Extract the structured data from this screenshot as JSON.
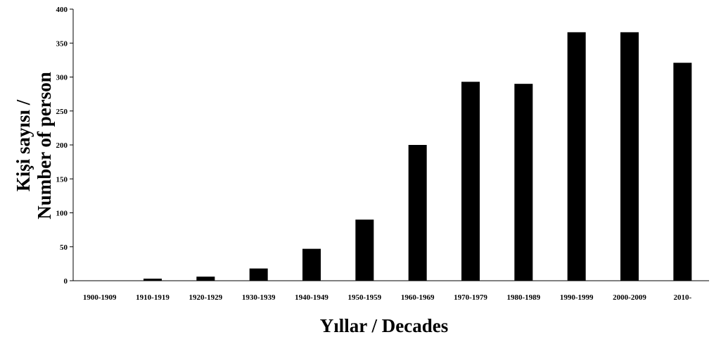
{
  "chart_data": {
    "type": "bar",
    "categories": [
      "1900-1909",
      "1910-1919",
      "1920-1929",
      "1930-1939",
      "1940-1949",
      "1950-1959",
      "1960-1969",
      "1970-1979",
      "1980-1989",
      "1990-1999",
      "2000-2009",
      "2010-"
    ],
    "values": [
      0,
      3,
      6,
      18,
      47,
      90,
      200,
      293,
      290,
      366,
      366,
      321
    ],
    "xlabel": "Yıllar / Decades",
    "ylabel_line1": "Kişi sayısı /",
    "ylabel_line2": "Number of person",
    "ylim": [
      0,
      400
    ],
    "yticks": [
      0,
      50,
      100,
      150,
      200,
      250,
      300,
      350,
      400
    ],
    "grid": false,
    "bar_color": "#000000"
  }
}
